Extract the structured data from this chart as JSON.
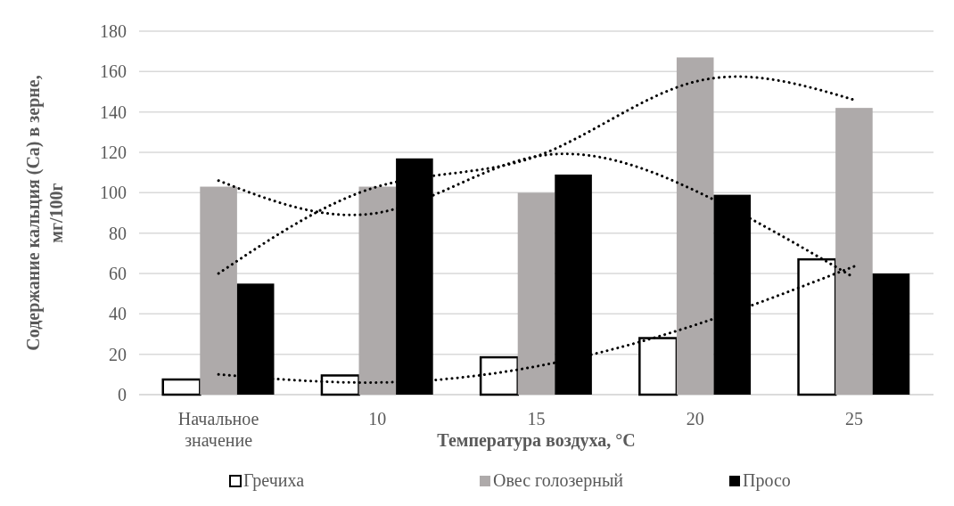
{
  "chart_data": {
    "type": "bar",
    "xlabel": "Температура воздуха, °C",
    "ylabel": "Содержание кальция (Ca) в зерне, мг/100г",
    "categories": [
      "Начальное значение",
      "10",
      "15",
      "20",
      "25"
    ],
    "series": [
      {
        "name": "Гречиха",
        "color": "#ffffff",
        "values": [
          7.5,
          9.5,
          18.5,
          28,
          67
        ]
      },
      {
        "name": "Овес голозерный",
        "color": "#aeaaaa",
        "values": [
          103,
          103,
          100,
          167,
          142
        ]
      },
      {
        "name": "Просо",
        "color": "#000000",
        "values": [
          55,
          117,
          109,
          99,
          60
        ]
      },
      {
        "type": "line",
        "color": "#000000",
        "line_style": "dotted",
        "values": [
          10,
          6,
          14,
          34.5,
          63.5
        ]
      },
      {
        "type": "line",
        "color": "#000000",
        "line_style": "dotted",
        "values": [
          60,
          103,
          118,
          155,
          146
        ]
      },
      {
        "type": "line",
        "color": "#000000",
        "line_style": "dotted",
        "values": [
          106,
          90,
          118,
          101,
          58
        ]
      }
    ],
    "ylim": [
      0,
      180
    ],
    "yticks": [
      0,
      20,
      40,
      60,
      80,
      100,
      120,
      140,
      160,
      180
    ],
    "grid": "y",
    "legend": "bottom"
  }
}
